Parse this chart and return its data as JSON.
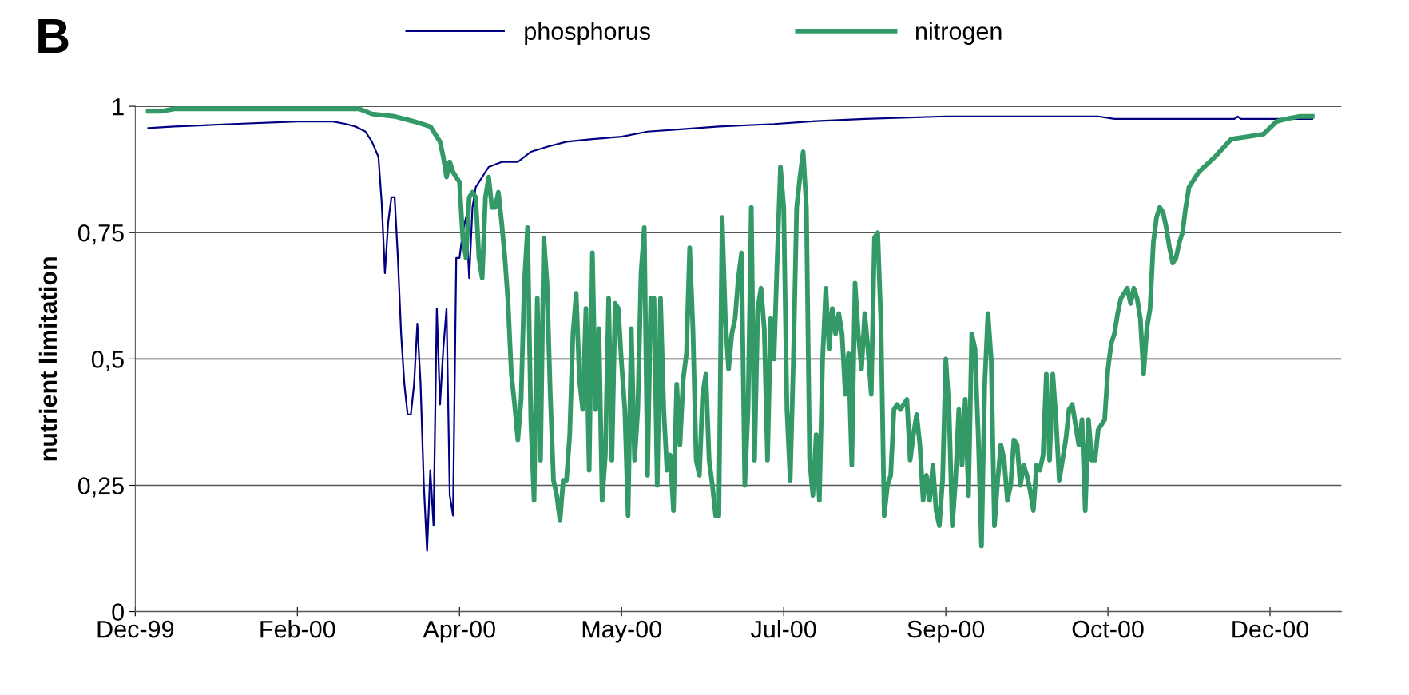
{
  "chart_data": {
    "type": "line",
    "annotations": [
      "B"
    ],
    "ylabel": "nutrient limitation",
    "ylim": [
      0,
      1
    ],
    "yticks": [
      0,
      {
        "value": 0.25,
        "label": "0,25"
      },
      {
        "value": 0.5,
        "label": "0,5"
      },
      {
        "value": 0.75,
        "label": "0,75"
      },
      1
    ],
    "xlim": [
      "1999-12-31",
      "2001-01-06"
    ],
    "xticks": [
      {
        "value": "1999-12-31",
        "label": "Dec-99"
      },
      {
        "value": "2000-02-19",
        "label": "Feb-00"
      },
      {
        "value": "2000-04-09",
        "label": "Apr-00"
      },
      {
        "value": "2000-05-29",
        "label": "May-00"
      },
      {
        "value": "2000-07-18",
        "label": "Jul-00"
      },
      {
        "value": "2000-09-06",
        "label": "Sep-00"
      },
      {
        "value": "2000-10-26",
        "label": "Oct-00"
      },
      {
        "value": "2000-12-15",
        "label": "Dec-00"
      }
    ],
    "grid": "y",
    "legend": "top",
    "marker": "none",
    "line_style": "solid",
    "series": [
      {
        "name": "phosphorus",
        "color": "#000080",
        "x": [
          "2000-01-04",
          "2000-01-12",
          "2000-01-30",
          "2000-02-19",
          "2000-03-01",
          "2000-03-05",
          "2000-03-08",
          "2000-03-11",
          "2000-03-13",
          "2000-03-15",
          "2000-03-16",
          "2000-03-17",
          "2000-03-18",
          "2000-03-19",
          "2000-03-20",
          "2000-03-21",
          "2000-03-22",
          "2000-03-23",
          "2000-03-24",
          "2000-03-25",
          "2000-03-26",
          "2000-03-27",
          "2000-03-28",
          "2000-03-29",
          "2000-03-30",
          "2000-03-31",
          "2000-04-01",
          "2000-04-02",
          "2000-04-03",
          "2000-04-04",
          "2000-04-05",
          "2000-04-06",
          "2000-04-07",
          "2000-04-08",
          "2000-04-09",
          "2000-04-10",
          "2000-04-11",
          "2000-04-12",
          "2000-04-13",
          "2000-04-14",
          "2000-04-16",
          "2000-04-18",
          "2000-04-22",
          "2000-04-27",
          "2000-05-01",
          "2000-05-06",
          "2000-05-12",
          "2000-05-20",
          "2000-05-29",
          "2000-06-06",
          "2000-06-17",
          "2000-06-28",
          "2000-07-15",
          "2000-07-26",
          "2000-08-12",
          "2000-09-06",
          "2000-10-23",
          "2000-10-28",
          "2000-12-04",
          "2000-12-05",
          "2000-12-06",
          "2000-12-28"
        ],
        "values": [
          0.957,
          0.96,
          0.965,
          0.97,
          0.97,
          0.965,
          0.96,
          0.95,
          0.93,
          0.9,
          0.81,
          0.67,
          0.77,
          0.82,
          0.82,
          0.7,
          0.55,
          0.45,
          0.39,
          0.39,
          0.45,
          0.57,
          0.45,
          0.25,
          0.12,
          0.28,
          0.17,
          0.6,
          0.41,
          0.52,
          0.6,
          0.23,
          0.19,
          0.7,
          0.7,
          0.75,
          0.78,
          0.66,
          0.8,
          0.84,
          0.86,
          0.88,
          0.89,
          0.89,
          0.91,
          0.92,
          0.93,
          0.935,
          0.94,
          0.95,
          0.955,
          0.96,
          0.965,
          0.97,
          0.975,
          0.98,
          0.98,
          0.975,
          0.975,
          0.98,
          0.975,
          0.975
        ]
      },
      {
        "name": "nitrogen",
        "color": "#339966",
        "x": [
          "2000-01-04",
          "2000-01-08",
          "2000-01-12",
          "2000-01-22",
          "2000-03-09",
          "2000-03-13",
          "2000-03-20",
          "2000-03-26",
          "2000-03-31",
          "2000-04-03",
          "2000-04-04",
          "2000-04-05",
          "2000-04-06",
          "2000-04-07",
          "2000-04-08",
          "2000-04-09",
          "2000-04-10",
          "2000-04-11",
          "2000-04-12",
          "2000-04-13",
          "2000-04-14",
          "2000-04-15",
          "2000-04-16",
          "2000-04-17",
          "2000-04-18",
          "2000-04-19",
          "2000-04-20",
          "2000-04-21",
          "2000-04-22",
          "2000-04-23",
          "2000-04-24",
          "2000-04-25",
          "2000-04-26",
          "2000-04-27",
          "2000-04-28",
          "2000-04-29",
          "2000-04-30",
          "2000-05-01",
          "2000-05-02",
          "2000-05-03",
          "2000-05-04",
          "2000-05-05",
          "2000-05-06",
          "2000-05-07",
          "2000-05-08",
          "2000-05-09",
          "2000-05-10",
          "2000-05-11",
          "2000-05-12",
          "2000-05-13",
          "2000-05-14",
          "2000-05-15",
          "2000-05-16",
          "2000-05-17",
          "2000-05-18",
          "2000-05-19",
          "2000-05-20",
          "2000-05-21",
          "2000-05-22",
          "2000-05-23",
          "2000-05-24",
          "2000-05-25",
          "2000-05-26",
          "2000-05-27",
          "2000-05-28",
          "2000-05-29",
          "2000-05-30",
          "2000-05-31",
          "2000-06-01",
          "2000-06-02",
          "2000-06-03",
          "2000-06-04",
          "2000-06-05",
          "2000-06-06",
          "2000-06-07",
          "2000-06-08",
          "2000-06-09",
          "2000-06-10",
          "2000-06-11",
          "2000-06-12",
          "2000-06-13",
          "2000-06-14",
          "2000-06-15",
          "2000-06-16",
          "2000-06-17",
          "2000-06-18",
          "2000-06-19",
          "2000-06-20",
          "2000-06-21",
          "2000-06-22",
          "2000-06-23",
          "2000-06-24",
          "2000-06-25",
          "2000-06-26",
          "2000-06-27",
          "2000-06-28",
          "2000-06-29",
          "2000-06-30",
          "2000-07-01",
          "2000-07-02",
          "2000-07-03",
          "2000-07-04",
          "2000-07-05",
          "2000-07-06",
          "2000-07-07",
          "2000-07-08",
          "2000-07-09",
          "2000-07-10",
          "2000-07-11",
          "2000-07-12",
          "2000-07-13",
          "2000-07-14",
          "2000-07-15",
          "2000-07-16",
          "2000-07-17",
          "2000-07-18",
          "2000-07-19",
          "2000-07-20",
          "2000-07-21",
          "2000-07-22",
          "2000-07-23",
          "2000-07-24",
          "2000-07-25",
          "2000-07-26",
          "2000-07-27",
          "2000-07-28",
          "2000-07-29",
          "2000-07-30",
          "2000-07-31",
          "2000-08-01",
          "2000-08-02",
          "2000-08-03",
          "2000-08-04",
          "2000-08-05",
          "2000-08-06",
          "2000-08-07",
          "2000-08-08",
          "2000-08-09",
          "2000-08-10",
          "2000-08-11",
          "2000-08-12",
          "2000-08-13",
          "2000-08-14",
          "2000-08-15",
          "2000-08-16",
          "2000-08-17",
          "2000-08-18",
          "2000-08-19",
          "2000-08-20",
          "2000-08-21",
          "2000-08-22",
          "2000-08-23",
          "2000-08-24",
          "2000-08-25",
          "2000-08-26",
          "2000-08-27",
          "2000-08-28",
          "2000-08-29",
          "2000-08-30",
          "2000-08-31",
          "2000-09-01",
          "2000-09-02",
          "2000-09-03",
          "2000-09-04",
          "2000-09-05",
          "2000-09-06",
          "2000-09-07",
          "2000-09-08",
          "2000-09-09",
          "2000-09-10",
          "2000-09-11",
          "2000-09-12",
          "2000-09-13",
          "2000-09-14",
          "2000-09-15",
          "2000-09-16",
          "2000-09-17",
          "2000-09-18",
          "2000-09-19",
          "2000-09-20",
          "2000-09-21",
          "2000-09-22",
          "2000-09-23",
          "2000-09-24",
          "2000-09-25",
          "2000-09-26",
          "2000-09-27",
          "2000-09-28",
          "2000-09-29",
          "2000-09-30",
          "2000-10-01",
          "2000-10-02",
          "2000-10-03",
          "2000-10-04",
          "2000-10-05",
          "2000-10-06",
          "2000-10-07",
          "2000-10-08",
          "2000-10-09",
          "2000-10-10",
          "2000-10-11",
          "2000-10-12",
          "2000-10-13",
          "2000-10-14",
          "2000-10-15",
          "2000-10-16",
          "2000-10-17",
          "2000-10-18",
          "2000-10-19",
          "2000-10-20",
          "2000-10-21",
          "2000-10-22",
          "2000-10-23",
          "2000-10-24",
          "2000-10-25",
          "2000-10-26",
          "2000-10-27",
          "2000-10-28",
          "2000-10-29",
          "2000-10-30",
          "2000-10-31",
          "2000-11-01",
          "2000-11-02",
          "2000-11-03",
          "2000-11-04",
          "2000-11-05",
          "2000-11-06",
          "2000-11-07",
          "2000-11-08",
          "2000-11-09",
          "2000-11-10",
          "2000-11-11",
          "2000-11-12",
          "2000-11-13",
          "2000-11-14",
          "2000-11-15",
          "2000-11-16",
          "2000-11-17",
          "2000-11-18",
          "2000-11-19",
          "2000-11-20",
          "2000-11-23",
          "2000-11-28",
          "2000-12-03",
          "2000-12-08",
          "2000-12-13",
          "2000-12-17",
          "2000-12-20",
          "2000-12-24",
          "2000-12-28"
        ],
        "values": [
          0.99,
          0.99,
          0.995,
          0.995,
          0.995,
          0.985,
          0.98,
          0.97,
          0.96,
          0.93,
          0.9,
          0.86,
          0.89,
          0.87,
          0.86,
          0.85,
          0.74,
          0.7,
          0.82,
          0.83,
          0.82,
          0.7,
          0.66,
          0.82,
          0.86,
          0.8,
          0.8,
          0.83,
          0.77,
          0.7,
          0.61,
          0.47,
          0.41,
          0.34,
          0.42,
          0.65,
          0.76,
          0.38,
          0.22,
          0.62,
          0.3,
          0.74,
          0.65,
          0.43,
          0.26,
          0.23,
          0.18,
          0.26,
          0.26,
          0.35,
          0.55,
          0.63,
          0.46,
          0.4,
          0.6,
          0.28,
          0.71,
          0.4,
          0.56,
          0.22,
          0.31,
          0.62,
          0.3,
          0.61,
          0.6,
          0.49,
          0.4,
          0.19,
          0.56,
          0.3,
          0.4,
          0.67,
          0.76,
          0.27,
          0.62,
          0.62,
          0.25,
          0.62,
          0.4,
          0.28,
          0.31,
          0.2,
          0.45,
          0.33,
          0.46,
          0.51,
          0.72,
          0.56,
          0.3,
          0.27,
          0.43,
          0.47,
          0.3,
          0.25,
          0.19,
          0.19,
          0.78,
          0.58,
          0.48,
          0.55,
          0.58,
          0.66,
          0.71,
          0.25,
          0.4,
          0.8,
          0.3,
          0.6,
          0.64,
          0.56,
          0.3,
          0.58,
          0.5,
          0.7,
          0.88,
          0.8,
          0.4,
          0.26,
          0.5,
          0.8,
          0.86,
          0.91,
          0.8,
          0.3,
          0.23,
          0.35,
          0.22,
          0.5,
          0.64,
          0.52,
          0.6,
          0.55,
          0.59,
          0.55,
          0.43,
          0.51,
          0.29,
          0.65,
          0.55,
          0.48,
          0.59,
          0.52,
          0.43,
          0.74,
          0.75,
          0.57,
          0.19,
          0.25,
          0.27,
          0.4,
          0.41,
          0.4,
          0.41,
          0.42,
          0.3,
          0.35,
          0.39,
          0.33,
          0.22,
          0.27,
          0.22,
          0.29,
          0.2,
          0.17,
          0.26,
          0.5,
          0.4,
          0.17,
          0.26,
          0.4,
          0.29,
          0.42,
          0.23,
          0.55,
          0.52,
          0.35,
          0.13,
          0.45,
          0.59,
          0.5,
          0.17,
          0.26,
          0.33,
          0.3,
          0.22,
          0.25,
          0.34,
          0.33,
          0.25,
          0.29,
          0.27,
          0.24,
          0.2,
          0.29,
          0.28,
          0.31,
          0.47,
          0.3,
          0.47,
          0.38,
          0.26,
          0.3,
          0.34,
          0.4,
          0.41,
          0.37,
          0.33,
          0.38,
          0.2,
          0.38,
          0.3,
          0.3,
          0.36,
          0.37,
          0.38,
          0.48,
          0.53,
          0.55,
          0.59,
          0.62,
          0.63,
          0.64,
          0.61,
          0.64,
          0.62,
          0.58,
          0.47,
          0.56,
          0.6,
          0.73,
          0.78,
          0.8,
          0.79,
          0.76,
          0.72,
          0.69,
          0.7,
          0.73,
          0.75,
          0.8,
          0.84,
          0.87,
          0.9,
          0.935,
          0.94,
          0.945,
          0.97,
          0.975,
          0.98,
          0.98
        ]
      }
    ]
  }
}
